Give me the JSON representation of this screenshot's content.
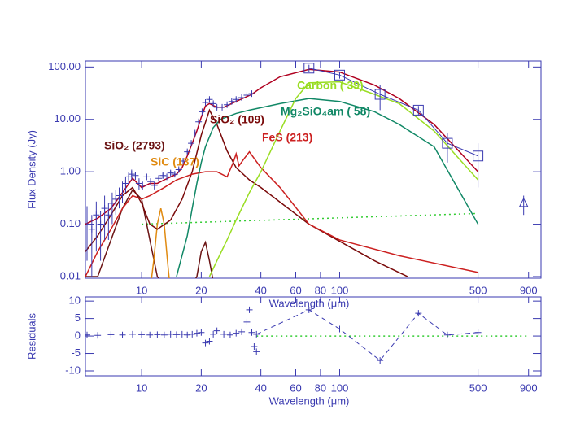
{
  "chart_data": [
    {
      "type": "line",
      "xlabel": "Wavelength (μm)",
      "ylabel": "Flux Density (Jy)",
      "xlog": true,
      "ylog": true,
      "xlim": [
        5.2,
        1040
      ],
      "ylim": [
        0.0093,
        130
      ],
      "xticks": [
        10,
        20,
        40,
        60,
        80,
        100,
        500,
        900
      ],
      "yticks": [
        {
          "value": 100,
          "label": "100.00"
        },
        {
          "value": 10,
          "label": "10.00"
        },
        {
          "value": 1,
          "label": "1.00"
        },
        {
          "value": 0.1,
          "label": "0.10"
        },
        {
          "value": 0.01,
          "label": "0.01"
        }
      ],
      "annotations": [
        {
          "text": "Carbon ( 39)",
          "color": "#99dd22"
        },
        {
          "text": "Mg₂SiO₄am ( 58)",
          "color": "#118866"
        },
        {
          "text": "SiO₂ (109)",
          "color": "#7a0a0a"
        },
        {
          "text": "SiO₂ (2793)",
          "color": "#6b1414"
        },
        {
          "text": "FeS (213)",
          "color": "#cc2020"
        },
        {
          "text": "SiC (137)",
          "color": "#e08a10"
        }
      ],
      "series": [
        {
          "style": "line",
          "color": "#33cc33",
          "dash": "dotted",
          "x": [
            10,
            500
          ],
          "values": [
            0.1,
            0.16
          ]
        },
        {
          "style": "line",
          "color": "#6b1414",
          "x": [
            5.2,
            6,
            7,
            8,
            9,
            10,
            11,
            12,
            14,
            17,
            19,
            20,
            21,
            22,
            23
          ],
          "values": [
            0.01,
            0.01,
            0.05,
            0.2,
            0.45,
            0.3,
            0.05,
            0.01,
            0.005,
            0.005,
            0.01,
            0.03,
            0.045,
            0.02,
            0.008
          ]
        },
        {
          "style": "line",
          "color": "#e08a10",
          "x": [
            11,
            11.5,
            12,
            12.5,
            13,
            13.5,
            14
          ],
          "values": [
            0.005,
            0.02,
            0.1,
            0.2,
            0.1,
            0.02,
            0.005
          ]
        },
        {
          "style": "line",
          "color": "#7a0a0a",
          "x": [
            5.2,
            6,
            7,
            8,
            9,
            10,
            11,
            12,
            14,
            16,
            18,
            20,
            22,
            24,
            27,
            30,
            35,
            40,
            70,
            150,
            220
          ],
          "values": [
            0.03,
            0.06,
            0.15,
            0.35,
            0.5,
            0.25,
            0.1,
            0.08,
            0.12,
            0.3,
            1,
            5,
            15,
            8,
            2.5,
            1.2,
            0.7,
            0.5,
            0.1,
            0.02,
            0.01
          ]
        },
        {
          "style": "line",
          "color": "#cc2020",
          "x": [
            5.2,
            6,
            7,
            8,
            9,
            10,
            11,
            13,
            15,
            18,
            21,
            24,
            27,
            29,
            30,
            31,
            33,
            35,
            40,
            50,
            70,
            100,
            200,
            500
          ],
          "values": [
            0.01,
            0.03,
            0.08,
            0.2,
            0.35,
            0.3,
            0.35,
            0.5,
            0.7,
            0.9,
            1.0,
            1.0,
            0.8,
            1.5,
            2.2,
            1.3,
            1.8,
            2.4,
            1.2,
            0.5,
            0.1,
            0.05,
            0.025,
            0.012
          ]
        },
        {
          "style": "line",
          "color": "#118866",
          "x": [
            15,
            17,
            18,
            19,
            20,
            21,
            23,
            25,
            30,
            35,
            50,
            70,
            100,
            150,
            200,
            300,
            500
          ],
          "values": [
            0.01,
            0.06,
            0.2,
            0.6,
            1.5,
            3,
            7,
            10,
            13,
            15,
            20,
            25,
            22,
            14,
            8,
            3,
            0.1
          ]
        },
        {
          "style": "line",
          "color": "#99dd22",
          "x": [
            22,
            24,
            27,
            30,
            35,
            40,
            50,
            60,
            70,
            100,
            150,
            200,
            300,
            500
          ],
          "values": [
            0.01,
            0.02,
            0.05,
            0.12,
            0.4,
            1,
            6,
            25,
            50,
            52,
            30,
            20,
            6,
            0.7
          ]
        },
        {
          "style": "line",
          "color": "#b00020",
          "x": [
            5.2,
            6,
            7,
            8,
            9,
            10,
            11,
            12,
            13,
            14,
            15,
            16,
            17,
            18,
            19,
            20,
            21,
            22,
            24,
            26,
            30,
            36,
            40,
            50,
            70,
            100,
            150,
            200,
            300,
            500
          ],
          "values": [
            0.1,
            0.13,
            0.2,
            0.4,
            0.75,
            0.5,
            0.6,
            0.6,
            0.7,
            0.8,
            0.9,
            1.2,
            2,
            3.5,
            6,
            11,
            18,
            20,
            17,
            17,
            22,
            30,
            40,
            65,
            90,
            80,
            45,
            25,
            8,
            1
          ]
        },
        {
          "style": "errors",
          "marker": "cross",
          "color": "#3a3ab0",
          "x": [
            5.3,
            5.6,
            5.9,
            6.2,
            6.5,
            6.8,
            7.1,
            7.4,
            7.7,
            8.0,
            8.3,
            8.6,
            8.9,
            9.3,
            9.7,
            10.1,
            10.6,
            11.1,
            11.6,
            12.2,
            12.8,
            13.4,
            14,
            14.7,
            15.4,
            16.2,
            17,
            17.8,
            18.6,
            19.4,
            20.2,
            21,
            22,
            23,
            24,
            25.5,
            27,
            28.5,
            30,
            32,
            34,
            36
          ],
          "values": [
            0.12,
            0.08,
            0.15,
            0.1,
            0.2,
            0.15,
            0.25,
            0.3,
            0.35,
            0.45,
            0.6,
            0.8,
            0.9,
            0.85,
            0.6,
            0.55,
            0.8,
            0.65,
            0.55,
            0.75,
            0.85,
            0.8,
            0.95,
            0.9,
            1.1,
            1.6,
            2.4,
            3.5,
            5.5,
            9,
            14,
            21,
            24,
            20,
            17,
            17,
            19,
            22,
            24,
            26,
            29,
            31
          ],
          "errors": [
            0.1,
            0.07,
            0.12,
            0.08,
            0.15,
            0.1,
            0.15,
            0.15,
            0.15,
            0.2,
            0.2,
            0.2,
            0.2,
            0.15,
            0.15,
            0.1,
            0.1,
            0.1,
            0.1,
            0.1,
            0.1,
            0.1,
            0.1,
            0.1,
            0.1,
            0.15,
            0.2,
            0.3,
            0.4,
            0.6,
            1,
            1.5,
            2,
            1.5,
            1,
            1,
            1,
            1.5,
            2,
            2,
            3,
            3
          ]
        },
        {
          "style": "errors",
          "marker": "square",
          "connect": true,
          "color": "#3a3ab0",
          "x": [
            70,
            100,
            160,
            250,
            350,
            500
          ],
          "values": [
            95,
            70,
            30,
            15,
            3.5,
            2
          ],
          "errors": [
            15,
            10,
            15,
            3,
            2,
            1.5
          ]
        },
        {
          "style": "errors",
          "marker": "triangle",
          "color": "#3a3ab0",
          "x": [
            850
          ],
          "values": [
            0.25
          ],
          "errors": [
            0.1
          ]
        }
      ]
    },
    {
      "type": "line",
      "xlabel": "Wavelength (μm)",
      "ylabel": "Residuals",
      "xlog": true,
      "ylog": false,
      "xlim": [
        5.2,
        1040
      ],
      "ylim": [
        -11.4,
        11.2
      ],
      "xticks": [
        10,
        20,
        40,
        60,
        80,
        100,
        500,
        900
      ],
      "yticks": [
        10,
        5,
        0,
        -5,
        -10
      ],
      "series": [
        {
          "style": "line",
          "color": "#33cc33",
          "dash": "dotted",
          "x": [
            38,
            900
          ],
          "values": [
            0,
            0
          ]
        },
        {
          "style": "errors",
          "marker": "cross",
          "color": "#3a3ab0",
          "x": [
            5.3,
            6,
            7,
            8,
            9,
            10,
            11,
            12,
            13,
            14,
            15,
            16,
            17,
            18,
            19,
            20,
            21,
            22,
            23,
            24,
            26,
            28,
            30,
            32,
            34,
            35,
            36,
            37,
            38
          ],
          "values": [
            0.3,
            0.2,
            0.4,
            0.3,
            0.5,
            0.4,
            0.3,
            0.4,
            0.3,
            0.5,
            0.4,
            0.5,
            0.3,
            0.5,
            0.8,
            1,
            -2,
            -1.5,
            0.5,
            1.5,
            0.5,
            0.3,
            0.8,
            1.2,
            4,
            7.5,
            1,
            -3,
            -4.5
          ]
        },
        {
          "style": "errors",
          "marker": "cross",
          "connect": true,
          "dash": "dashed",
          "color": "#3a3ab0",
          "x": [
            38,
            70,
            100,
            160,
            250,
            350,
            500
          ],
          "values": [
            0.5,
            7.5,
            2,
            -7,
            6.5,
            0.3,
            1
          ]
        }
      ]
    }
  ]
}
